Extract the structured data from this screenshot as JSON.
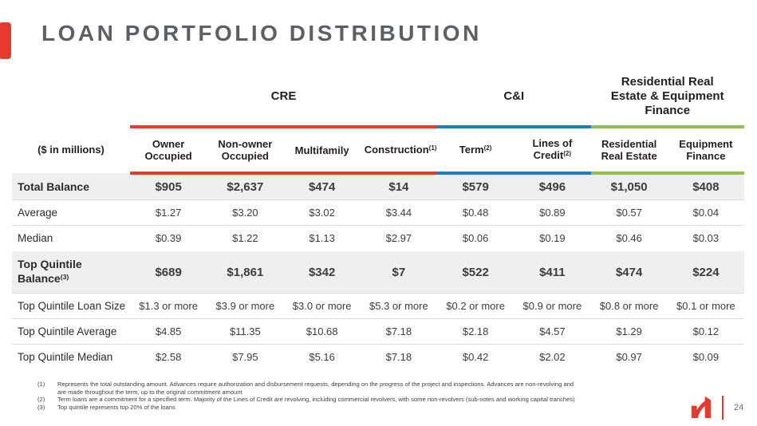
{
  "slide": {
    "title": "LOAN PORTFOLIO DISTRIBUTION",
    "page_number": "24"
  },
  "colors": {
    "accent_red": "#E7392E",
    "cre_red": "#E7392E",
    "ci_blue": "#1E7CC1",
    "rre_green": "#8FC14C",
    "title_gray": "#5E5F62",
    "row_highlight": "#F0EFF0"
  },
  "table": {
    "units_label": "($ in millions)",
    "groups": [
      {
        "label": "CRE",
        "span": 4,
        "color": "#E7392E"
      },
      {
        "label": "C&I",
        "span": 2,
        "color": "#1E7CC1"
      },
      {
        "label": "Residential Real Estate & Equipment Finance",
        "span": 2,
        "color": "#8FC14C"
      }
    ],
    "columns": [
      {
        "label": "Owner Occupied",
        "group": 0
      },
      {
        "label": "Non-owner Occupied",
        "group": 0
      },
      {
        "label": "Multifamily",
        "group": 0
      },
      {
        "label": "Construction",
        "sup": "(1)",
        "group": 0
      },
      {
        "label": "Term",
        "sup": "(2)",
        "group": 1
      },
      {
        "label": "Lines of Credit",
        "sup": "(2)",
        "group": 1
      },
      {
        "label": "Residential Real Estate",
        "group": 2
      },
      {
        "label": "Equipment Finance",
        "group": 2
      }
    ],
    "rows": [
      {
        "label": "Total Balance",
        "highlight": true,
        "values": [
          "$905",
          "$2,637",
          "$474",
          "$14",
          "$579",
          "$496",
          "$1,050",
          "$408"
        ]
      },
      {
        "label": "Average",
        "values": [
          "$1.27",
          "$3.20",
          "$3.02",
          "$3.44",
          "$0.48",
          "$0.89",
          "$0.57",
          "$0.04"
        ]
      },
      {
        "label": "Median",
        "values": [
          "$0.39",
          "$1.22",
          "$1.13",
          "$2.97",
          "$0.06",
          "$0.19",
          "$0.46",
          "$0.03"
        ]
      },
      {
        "label": "Top Quintile Balance",
        "sup": "(3)",
        "highlight": true,
        "values": [
          "$689",
          "$1,861",
          "$342",
          "$7",
          "$522",
          "$411",
          "$474",
          "$224"
        ]
      },
      {
        "label": "Top Quintile Loan Size",
        "values": [
          "$1.3 or more",
          "$3.9 or more",
          "$3.0 or more",
          "$5.3 or more",
          "$0.2 or more",
          "$0.9 or more",
          "$0.8 or more",
          "$0.1 or more"
        ]
      },
      {
        "label": "Top Quintile Average",
        "values": [
          "$4.85",
          "$11.35",
          "$10.68",
          "$7.18",
          "$2.18",
          "$4.57",
          "$1.29",
          "$0.12"
        ]
      },
      {
        "label": "Top Quintile Median",
        "values": [
          "$2.58",
          "$7.95",
          "$5.16",
          "$7.18",
          "$0.42",
          "$2.02",
          "$0.97",
          "$0.09"
        ]
      }
    ]
  },
  "footnotes": [
    {
      "num": "(1)",
      "text": "Represents the total outstanding amount. Advances require authorization and disbursement requests, depending on the progress of the project and inspections. Advances are non-revolving and are made throughout the term, up to the original commitment amount"
    },
    {
      "num": "(2)",
      "text": "Term loans are a commitment for a specified term. Majority of the Lines of Credit are revolving, including commercial revolvers, with some non-revolvers (sub-notes and working capital tranches)"
    },
    {
      "num": "(3)",
      "text": "Top quintile represents top 20% of the loans"
    }
  ]
}
